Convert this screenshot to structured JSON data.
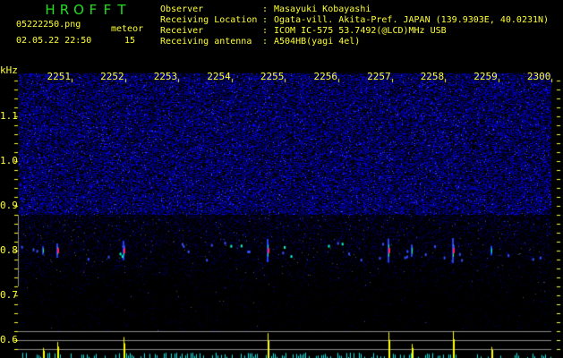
{
  "header": {
    "app_title": "HROFFT",
    "filename": "05222250.png",
    "datetime": "02.05.22 22:50",
    "meteor_label": "meteor",
    "meteor_count": "15",
    "info": [
      {
        "label": "Observer",
        "value": "Masayuki Kobayashi"
      },
      {
        "label": "Receiving Location",
        "value": "Ogata-vill. Akita-Pref. JAPAN (139.9303E, 40.0231N)"
      },
      {
        "label": "Receiver",
        "value": "ICOM IC-575 53.7492(@LCD)MHz USB"
      },
      {
        "label": "Receiving antenna",
        "value": "A504HB(yagi 4el)"
      }
    ]
  },
  "chart_data": {
    "type": "heatmap",
    "ylabel": "kHz",
    "x_ticks": [
      "2251",
      "2252",
      "2253",
      "2254",
      "2255",
      "2256",
      "2257",
      "2258",
      "2259",
      "2300"
    ],
    "y_ticks": [
      "1.1",
      "1.0",
      "0.9",
      "0.8",
      "0.7",
      "0.6"
    ],
    "ylim": [
      0.56,
      1.2
    ],
    "xlim_minutes": [
      22.5,
      23.0
    ],
    "echo_frequency_khz": 0.8,
    "echoes": [
      {
        "time": "22:50:28",
        "strength": 0.15
      },
      {
        "time": "22:50:44",
        "strength": 0.45
      },
      {
        "time": "22:51:58",
        "strength": 0.7
      },
      {
        "time": "22:54:40",
        "strength": 0.9
      },
      {
        "time": "22:56:56",
        "strength": 0.95
      },
      {
        "time": "22:57:23",
        "strength": 0.35
      },
      {
        "time": "22:58:09",
        "strength": 1.0
      },
      {
        "time": "22:58:52",
        "strength": 0.2
      }
    ],
    "colors": {
      "noise": "#1a1aff",
      "echo_core": "#ff2060",
      "echo_edge": "#00ff80",
      "bar_strong": "#ffff00",
      "bar_weak": "#00e5e5",
      "grid": "#808080",
      "labels": "#ffff33"
    }
  }
}
